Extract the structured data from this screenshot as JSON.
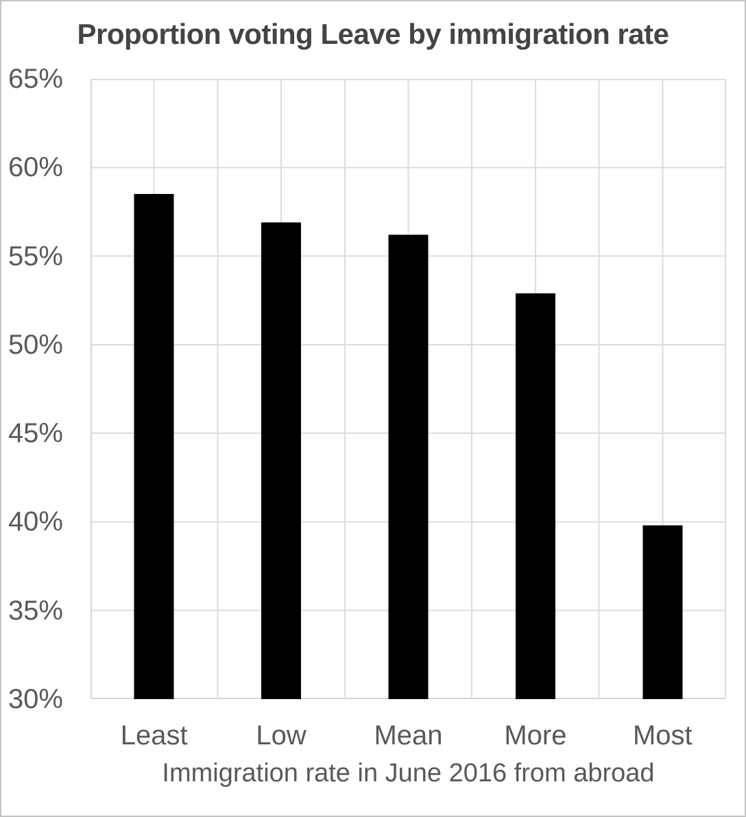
{
  "window": {
    "background_color": "#ffffff",
    "border_color": "#c3c3c3"
  },
  "chart_data": {
    "type": "bar",
    "title": "Proportion voting Leave by immigration rate",
    "xlabel": "Immigration rate in June 2016 from abroad",
    "ylabel": "",
    "categories": [
      "Least",
      "Low",
      "Mean",
      "More",
      "Most"
    ],
    "values": [
      58.5,
      56.9,
      56.2,
      52.9,
      39.8
    ],
    "value_unit": "%",
    "ylim": [
      30,
      65
    ],
    "ytick_step": 5,
    "yticks": [
      "30%",
      "35%",
      "40%",
      "45%",
      "50%",
      "55%",
      "60%",
      "65%"
    ],
    "grid": "horizontal-major and vertical-half-category",
    "legend": "none",
    "bar_color": "#000000",
    "gridline_color": "#dcdcdc",
    "axis_line_color": "#d4d4d4",
    "title_color": "#444444",
    "tick_label_color": "#595959"
  }
}
